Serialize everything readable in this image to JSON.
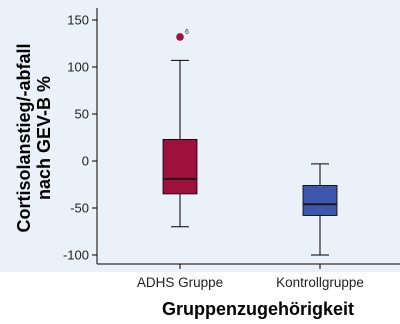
{
  "chart_data": {
    "type": "box",
    "ylabel_line1": "Cortisolanstieg/-abfall",
    "ylabel_line2": "nach GEV-B %",
    "xlabel": "Gruppenzugehörigkeit",
    "ylim": [
      -110,
      155
    ],
    "yticks": [
      150,
      100,
      50,
      0,
      -50,
      -100
    ],
    "categories": [
      "ADHS Gruppe",
      "Kontrollgruppe"
    ],
    "boxes": [
      {
        "name": "ADHS Gruppe",
        "whisker_low": -70,
        "q1": -35,
        "median": -19,
        "q3": 23,
        "whisker_high": 107,
        "color": "#a0103f",
        "outliers": [
          {
            "value": 132,
            "label": "6"
          }
        ]
      },
      {
        "name": "Kontrollgruppe",
        "whisker_low": -100,
        "q1": -58,
        "median": -46,
        "q3": -26,
        "whisker_high": -3,
        "color": "#3d56ae",
        "outliers": []
      }
    ],
    "outlier_color": "#a0103f",
    "background_color": "#ebf1f8",
    "grid": false
  }
}
